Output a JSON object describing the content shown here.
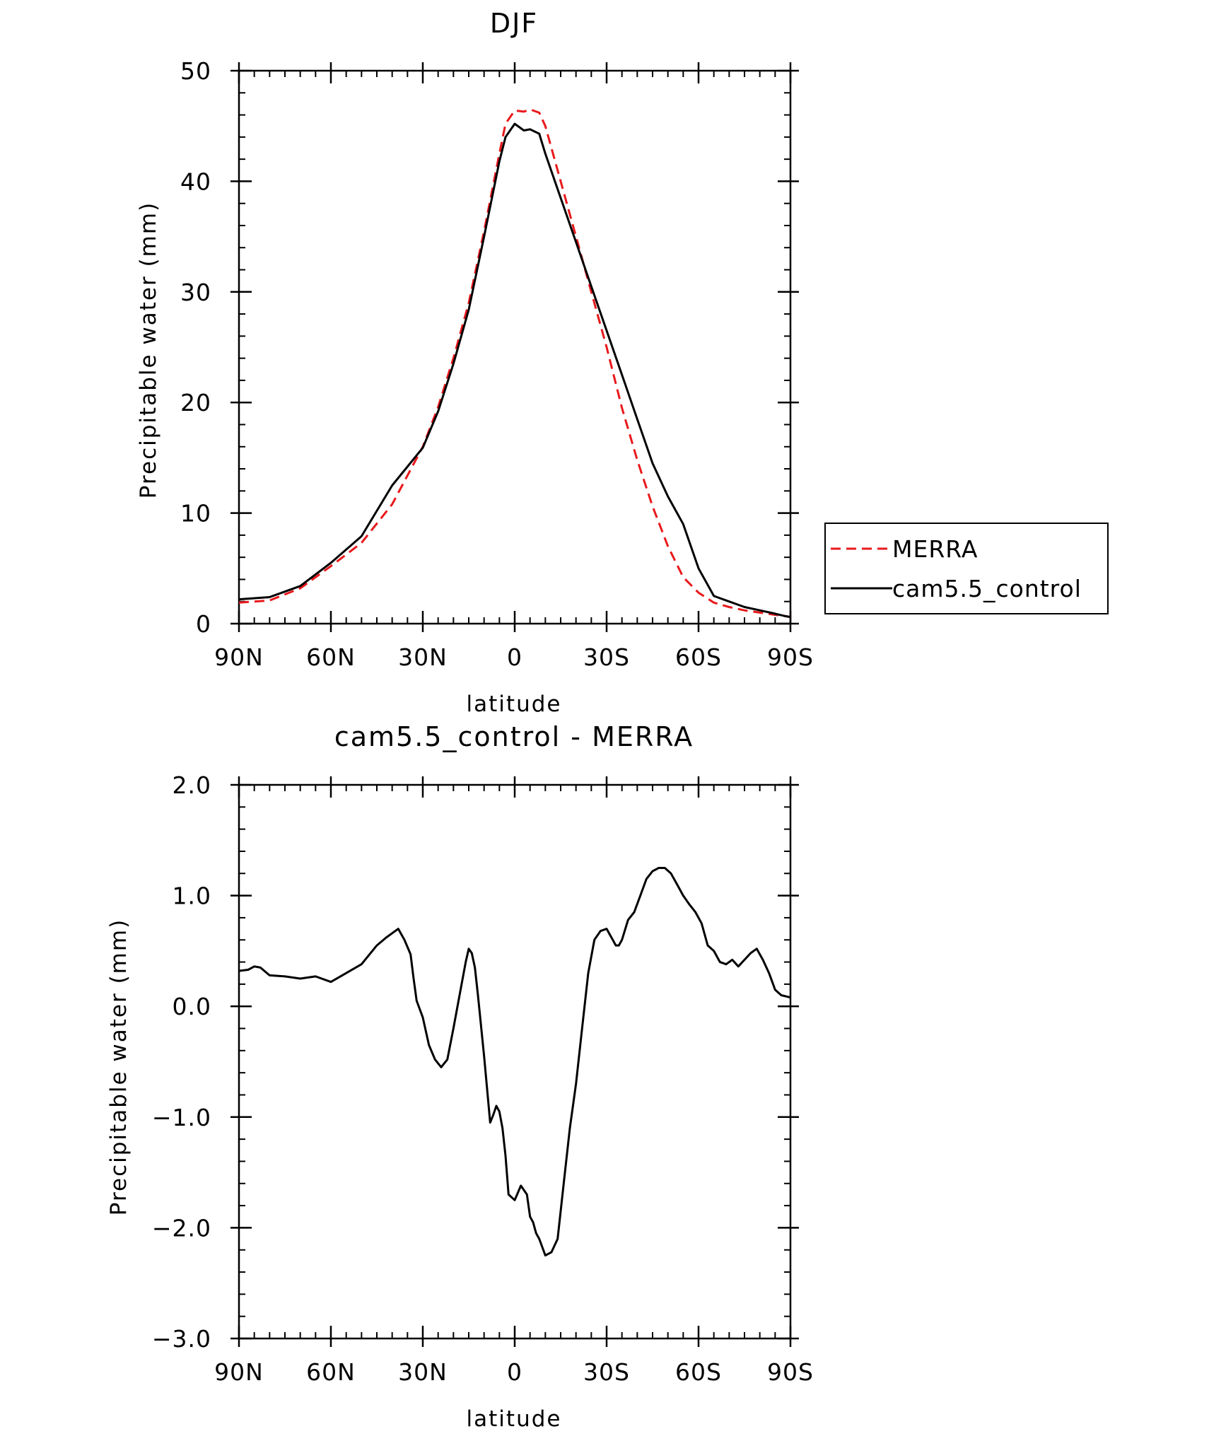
{
  "chart_data": [
    {
      "type": "line",
      "title": "DJF",
      "xlabel": "latitude",
      "ylabel": "Precipitable water (mm)",
      "xlim": [
        90,
        -90
      ],
      "ylim": [
        0,
        50
      ],
      "xticks": [
        90,
        60,
        30,
        0,
        -30,
        -60,
        -90
      ],
      "xtick_labels": [
        "90N",
        "60N",
        "30N",
        "0",
        "30S",
        "60S",
        "90S"
      ],
      "yticks": [
        0,
        10,
        20,
        30,
        40,
        50
      ],
      "ytick_labels": [
        "0",
        "10",
        "20",
        "30",
        "40",
        "50"
      ],
      "grid": false,
      "legend_placement": "right, outside plot",
      "series": [
        {
          "name": "MERRA",
          "color": "#e8191c",
          "style": "dashed",
          "x": [
            90,
            80,
            70,
            60,
            50,
            40,
            30,
            25,
            20,
            15,
            10,
            5,
            3,
            0,
            -3,
            -5,
            -8,
            -10,
            -15,
            -20,
            -25,
            -30,
            -35,
            -40,
            -45,
            -50,
            -55,
            -60,
            -65,
            -70,
            -75,
            -80,
            -85,
            -88,
            -90
          ],
          "y": [
            1.9,
            2.1,
            3.2,
            5.2,
            7.3,
            10.8,
            16.0,
            19.6,
            24.0,
            29.0,
            35.5,
            42.5,
            45.2,
            46.4,
            46.3,
            46.5,
            46.2,
            45.0,
            40.0,
            35.0,
            30.0,
            25.0,
            19.5,
            14.8,
            10.6,
            7.0,
            4.2,
            2.8,
            1.9,
            1.5,
            1.2,
            1.0,
            0.8,
            0.7,
            0.6
          ]
        },
        {
          "name": "cam5.5_control",
          "color": "#000000",
          "style": "solid",
          "x": [
            90,
            80,
            70,
            60,
            50,
            40,
            30,
            25,
            20,
            15,
            10,
            5,
            3,
            0,
            -3,
            -5,
            -8,
            -10,
            -15,
            -20,
            -25,
            -30,
            -35,
            -40,
            -45,
            -50,
            -55,
            -60,
            -65,
            -70,
            -75,
            -80,
            -85,
            -88,
            -90
          ],
          "y": [
            2.2,
            2.4,
            3.4,
            5.5,
            7.9,
            12.5,
            15.9,
            19.2,
            23.5,
            28.4,
            35.0,
            41.8,
            44.0,
            45.2,
            44.6,
            44.7,
            44.3,
            42.5,
            38.5,
            34.5,
            30.5,
            26.5,
            22.5,
            18.5,
            14.5,
            11.5,
            9.0,
            5.0,
            2.5,
            2.0,
            1.5,
            1.2,
            0.9,
            0.7,
            0.6
          ]
        }
      ]
    },
    {
      "type": "line",
      "title": "cam5.5_control - MERRA",
      "xlabel": "latitude",
      "ylabel": "Precipitable water (mm)",
      "xlim": [
        90,
        -90
      ],
      "ylim": [
        -3.0,
        2.0
      ],
      "xticks": [
        90,
        60,
        30,
        0,
        -30,
        -60,
        -90
      ],
      "xtick_labels": [
        "90N",
        "60N",
        "30N",
        "0",
        "30S",
        "60S",
        "90S"
      ],
      "yticks": [
        -3.0,
        -2.0,
        -1.0,
        0.0,
        1.0,
        2.0
      ],
      "ytick_labels": [
        "−3.0",
        "−2.0",
        "−1.0",
        "0.0",
        "1.0",
        "2.0"
      ],
      "grid": false,
      "series": [
        {
          "color": "#000000",
          "style": "solid",
          "x": [
            90,
            87,
            85,
            83,
            80,
            75,
            70,
            65,
            60,
            55,
            50,
            45,
            42,
            40,
            38,
            36,
            34,
            33,
            32,
            30,
            28,
            26,
            24,
            22,
            20,
            18,
            16,
            15,
            14,
            13,
            12,
            10,
            8,
            7,
            6,
            5,
            4,
            3,
            2,
            0,
            -2,
            -4,
            -5,
            -6,
            -7,
            -8,
            -10,
            -12,
            -14,
            -16,
            -18,
            -20,
            -22,
            -24,
            -26,
            -28,
            -30,
            -31,
            -32,
            -33,
            -34,
            -35,
            -37,
            -39,
            -41,
            -43,
            -45,
            -47,
            -49,
            -51,
            -53,
            -55,
            -57,
            -59,
            -61,
            -63,
            -65,
            -67,
            -69,
            -71,
            -73,
            -75,
            -77,
            -79,
            -81,
            -83,
            -85,
            -87,
            -90
          ],
          "y": [
            0.32,
            0.33,
            0.36,
            0.35,
            0.28,
            0.27,
            0.25,
            0.27,
            0.22,
            0.3,
            0.38,
            0.55,
            0.62,
            0.66,
            0.7,
            0.6,
            0.47,
            0.25,
            0.05,
            -0.1,
            -0.35,
            -0.48,
            -0.55,
            -0.48,
            -0.2,
            0.1,
            0.4,
            0.52,
            0.48,
            0.35,
            0.1,
            -0.45,
            -1.05,
            -0.98,
            -0.9,
            -0.95,
            -1.1,
            -1.35,
            -1.7,
            -1.75,
            -1.62,
            -1.7,
            -1.9,
            -1.95,
            -2.05,
            -2.1,
            -2.25,
            -2.22,
            -2.1,
            -1.6,
            -1.1,
            -0.7,
            -0.2,
            0.3,
            0.6,
            0.68,
            0.7,
            0.65,
            0.6,
            0.55,
            0.55,
            0.6,
            0.78,
            0.85,
            1.0,
            1.15,
            1.22,
            1.25,
            1.25,
            1.2,
            1.1,
            1.0,
            0.92,
            0.85,
            0.75,
            0.55,
            0.5,
            0.4,
            0.38,
            0.42,
            0.36,
            0.42,
            0.48,
            0.52,
            0.42,
            0.3,
            0.15,
            0.1,
            0.08
          ]
        }
      ]
    }
  ]
}
